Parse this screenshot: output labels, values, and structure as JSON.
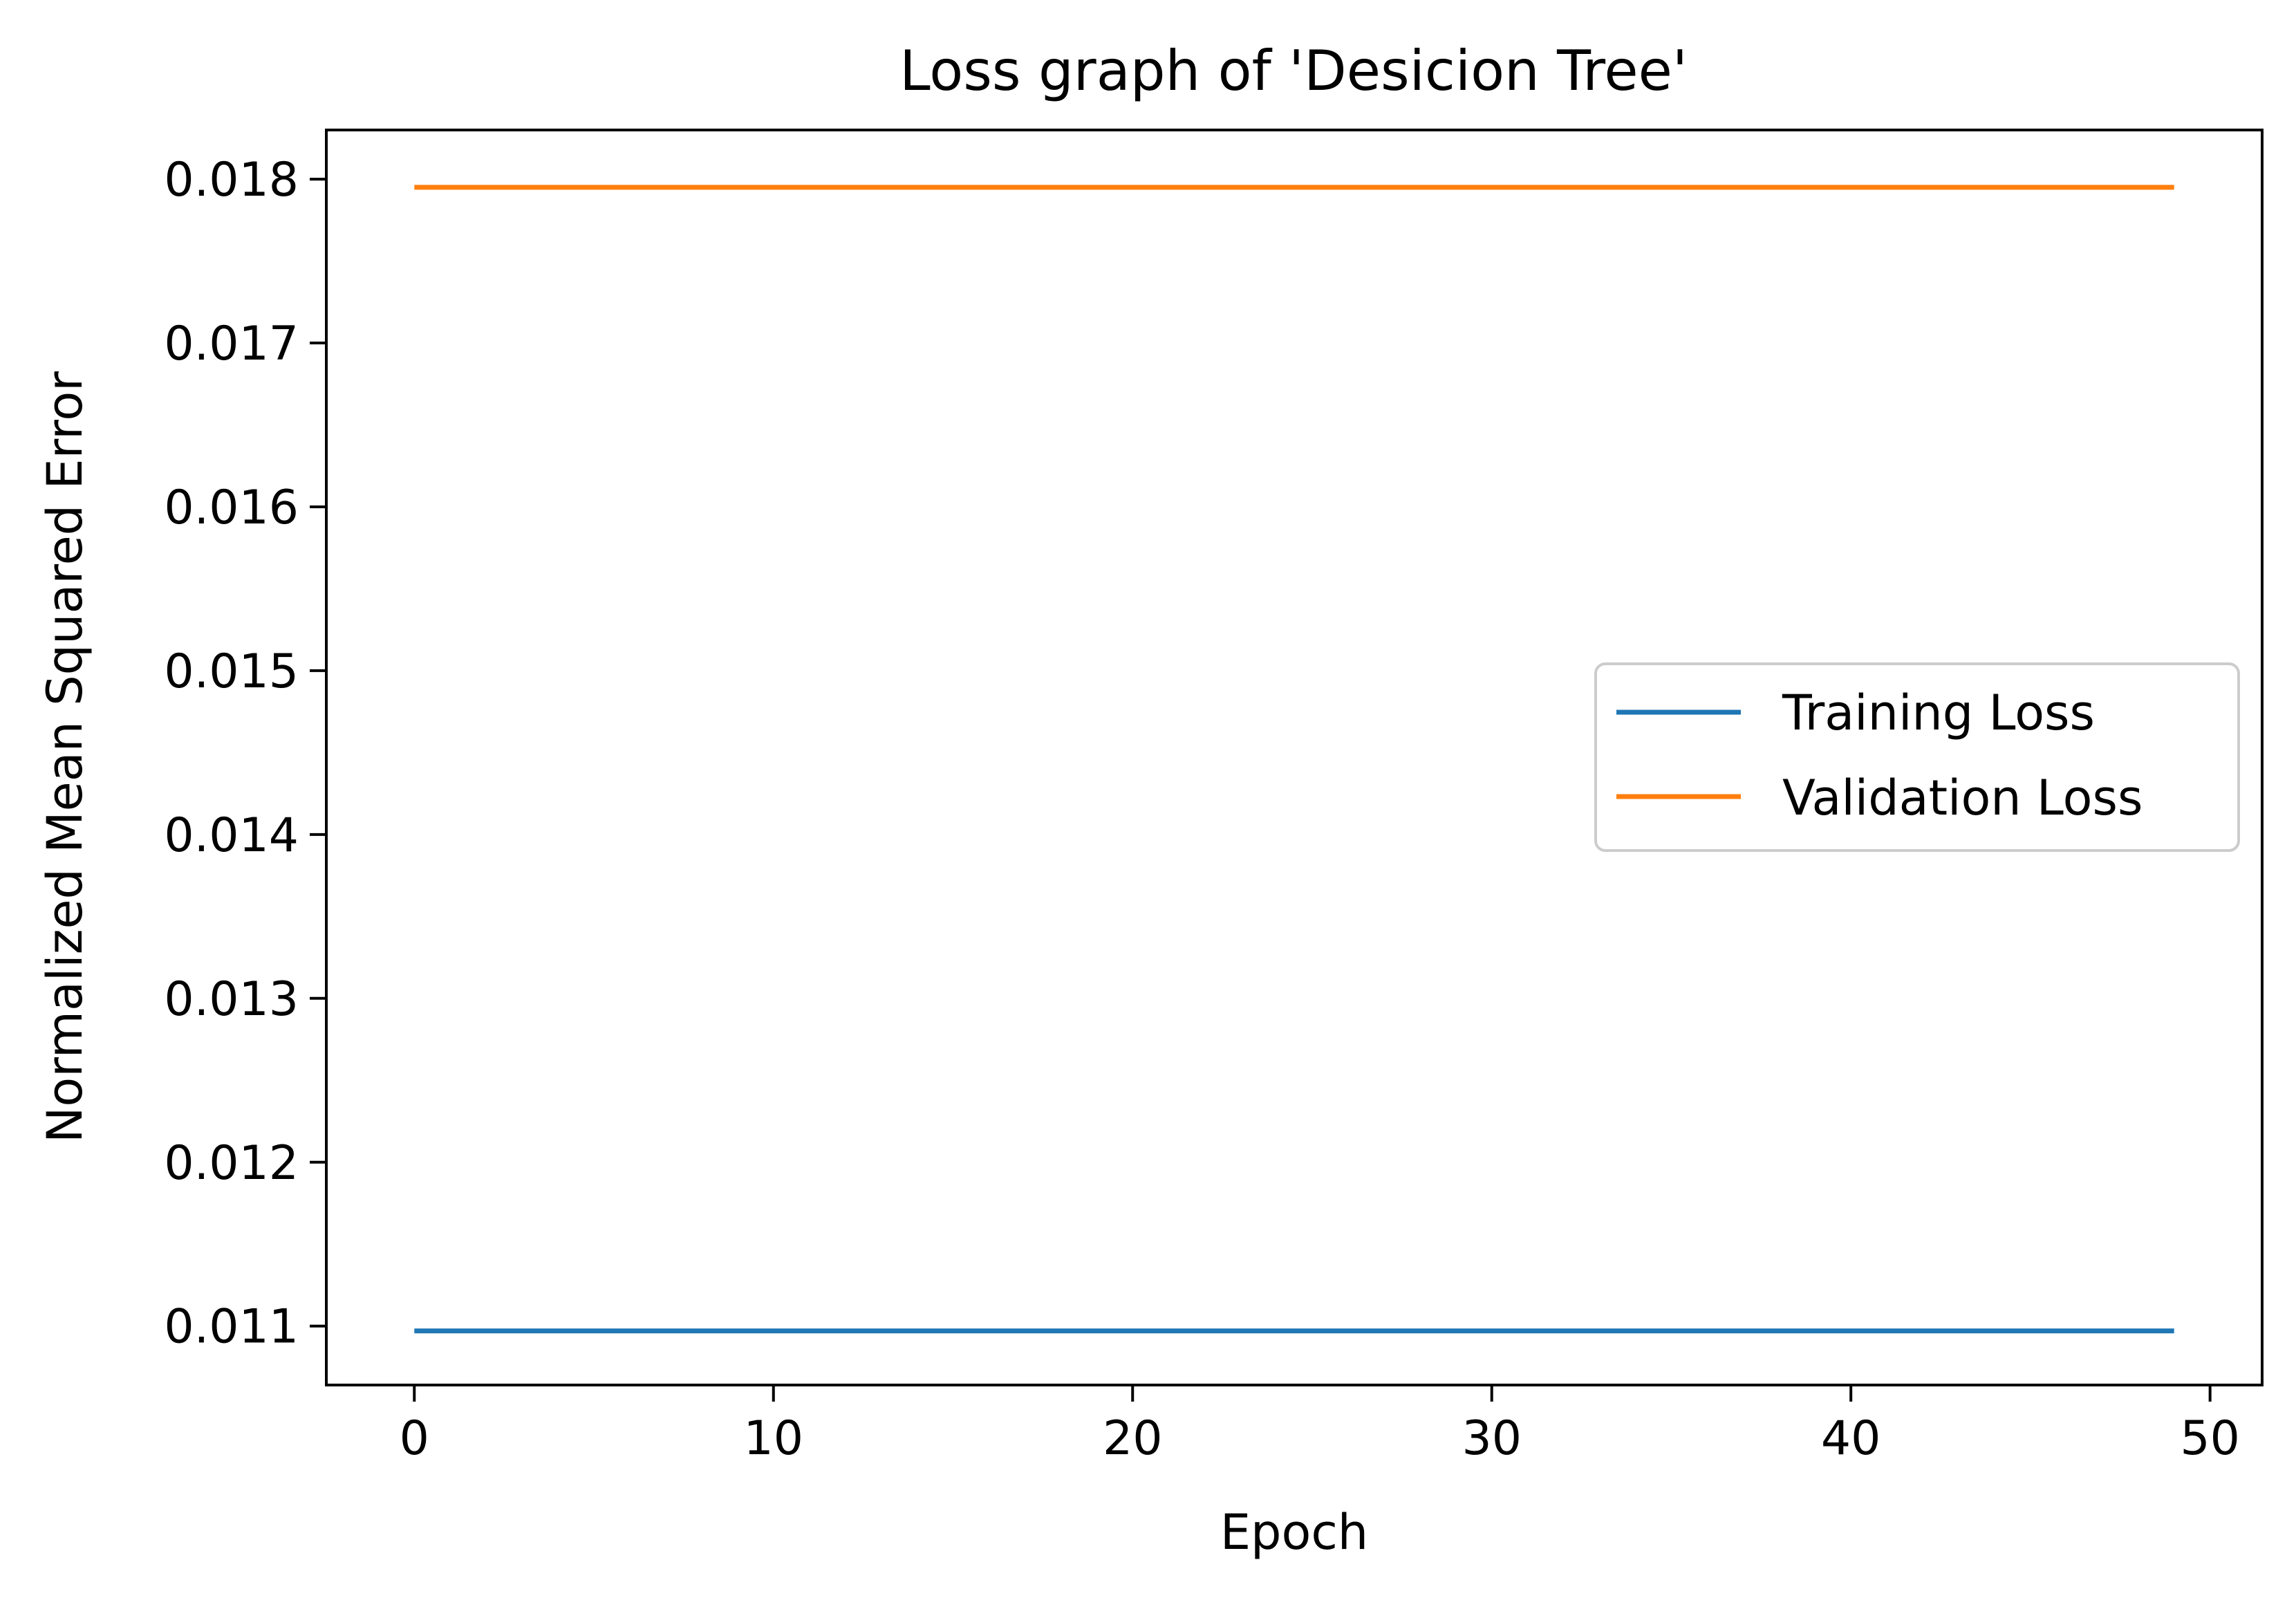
{
  "chart_data": {
    "type": "line",
    "title": "Loss graph of 'Desicion Tree'",
    "xlabel": "Epoch",
    "ylabel": "Normalized Mean Squared Error",
    "xlim": [
      -2.45,
      51.45
    ],
    "ylim": [
      0.01064,
      0.0183
    ],
    "xticks": [
      0,
      10,
      20,
      30,
      40,
      50
    ],
    "yticks": [
      0.011,
      0.012,
      0.013,
      0.014,
      0.015,
      0.016,
      0.017,
      0.018
    ],
    "xtick_labels": [
      "0",
      "10",
      "20",
      "30",
      "40",
      "50"
    ],
    "ytick_labels": [
      "0.011",
      "0.012",
      "0.013",
      "0.014",
      "0.015",
      "0.016",
      "0.017",
      "0.018"
    ],
    "grid": false,
    "legend_position": "center-right",
    "x": [
      0,
      49
    ],
    "series": [
      {
        "name": "Training Loss",
        "color": "#1f77b4",
        "values": [
          0.01097,
          0.01097
        ]
      },
      {
        "name": "Validation Loss",
        "color": "#ff7f0e",
        "values": [
          0.01795,
          0.01795
        ]
      }
    ]
  }
}
